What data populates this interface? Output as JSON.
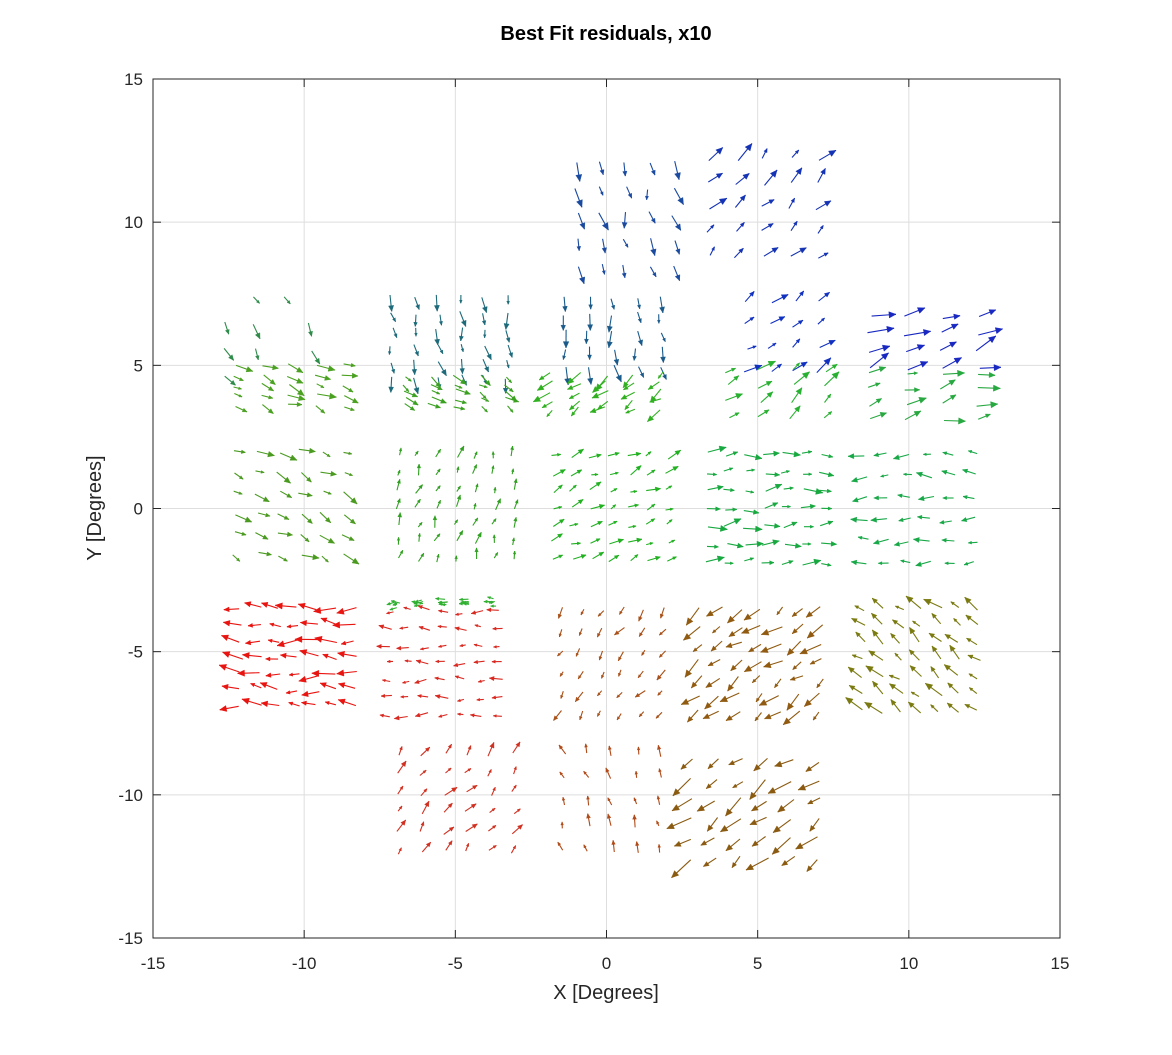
{
  "chart_data": {
    "type": "quiver",
    "title": "Best Fit residuals, x10",
    "xlabel": "X [Degrees]",
    "ylabel": "Y [Degrees]",
    "xlim": [
      -15,
      15
    ],
    "ylim": [
      -15,
      15
    ],
    "xticks": [
      -15,
      -10,
      -5,
      0,
      5,
      10,
      15
    ],
    "yticks": [
      -15,
      -10,
      -5,
      0,
      5,
      10,
      15
    ],
    "grid": true,
    "box": "on",
    "fields": [
      {
        "center": [
          -11.2,
          6.0
        ],
        "half": [
          1.4,
          1.4
        ],
        "density": 4,
        "dir": [
          0.5,
          -0.9
        ],
        "color": "#2e8b4a",
        "mag": 0.45,
        "sparse": true
      },
      {
        "center": [
          -10.5,
          4.3
        ],
        "half": [
          1.8,
          0.7
        ],
        "density": 5,
        "dir": [
          1.0,
          -0.4
        ],
        "color": "#4aa020",
        "mag": 0.5
      },
      {
        "center": [
          -5.2,
          6.0
        ],
        "half": [
          1.9,
          1.4
        ],
        "density": 6,
        "dir": [
          0.2,
          -1.0
        ],
        "color": "#1c6a7a",
        "mag": 0.45
      },
      {
        "center": [
          -5.0,
          4.1
        ],
        "half": [
          1.7,
          0.5
        ],
        "density": 5,
        "dir": [
          0.8,
          -0.5
        ],
        "color": "#3aa020",
        "mag": 0.45
      },
      {
        "center": [
          0.2,
          6.2
        ],
        "half": [
          1.6,
          1.2
        ],
        "density": 5,
        "dir": [
          0.1,
          -1.0
        ],
        "color": "#1a5a8a",
        "mag": 0.5
      },
      {
        "center": [
          0.0,
          4.1
        ],
        "half": [
          1.8,
          0.6
        ],
        "density": 5,
        "dir": [
          -0.8,
          -0.6
        ],
        "color": "#30b020",
        "mag": 0.5
      },
      {
        "center": [
          0.6,
          10.3
        ],
        "half": [
          1.6,
          1.8
        ],
        "density": 5,
        "dir": [
          0.2,
          -1.0
        ],
        "color": "#1a4aa0",
        "mag": 0.55
      },
      {
        "center": [
          5.2,
          10.5
        ],
        "half": [
          1.8,
          1.7
        ],
        "density": 5,
        "dir": [
          0.7,
          0.8
        ],
        "color": "#1432b4",
        "mag": 0.6
      },
      {
        "center": [
          5.8,
          6.0
        ],
        "half": [
          1.2,
          1.2
        ],
        "density": 4,
        "dir": [
          0.8,
          0.6
        ],
        "color": "#1030c0",
        "mag": 0.55
      },
      {
        "center": [
          5.6,
          4.0
        ],
        "half": [
          1.6,
          0.8
        ],
        "density": 4,
        "dir": [
          0.8,
          0.6
        ],
        "color": "#28b030",
        "mag": 0.55
      },
      {
        "center": [
          10.5,
          5.8
        ],
        "half": [
          1.8,
          0.9
        ],
        "density": 4,
        "dir": [
          1.0,
          0.4
        ],
        "color": "#1828c0",
        "mag": 0.7
      },
      {
        "center": [
          10.5,
          3.9
        ],
        "half": [
          1.8,
          0.8
        ],
        "density": 4,
        "dir": [
          1.0,
          0.3
        ],
        "color": "#28a840",
        "mag": 0.6
      },
      {
        "center": [
          -10.5,
          0.2
        ],
        "half": [
          1.8,
          1.8
        ],
        "density": 6,
        "dir": [
          1.0,
          -0.5
        ],
        "color": "#4a9a20",
        "mag": 0.5
      },
      {
        "center": [
          -5.0,
          0.0
        ],
        "half": [
          1.9,
          1.8
        ],
        "density": 7,
        "dir": [
          0.3,
          0.9
        ],
        "color": "#30a020",
        "mag": 0.35
      },
      {
        "center": [
          0.1,
          0.0
        ],
        "half": [
          1.9,
          1.8
        ],
        "density": 7,
        "dir": [
          0.9,
          0.4
        ],
        "color": "#20b020",
        "mag": 0.4
      },
      {
        "center": [
          5.2,
          0.0
        ],
        "half": [
          1.9,
          1.9
        ],
        "density": 7,
        "dir": [
          1.0,
          0.1
        ],
        "color": "#18a840",
        "mag": 0.5
      },
      {
        "center": [
          10.4,
          0.0
        ],
        "half": [
          1.8,
          1.9
        ],
        "density": 6,
        "dir": [
          -1.0,
          0.0
        ],
        "color": "#18a848",
        "mag": 0.45
      },
      {
        "center": [
          -10.2,
          -5.2
        ],
        "half": [
          1.9,
          1.7
        ],
        "density": 7,
        "dir": [
          -1.0,
          0.05
        ],
        "color": "#e81410",
        "mag": 0.6
      },
      {
        "center": [
          -5.3,
          -5.4
        ],
        "half": [
          1.8,
          1.8
        ],
        "density": 7,
        "dir": [
          -1.0,
          0.0
        ],
        "color": "#d82820",
        "mag": 0.35
      },
      {
        "center": [
          -5.3,
          -3.3
        ],
        "half": [
          1.6,
          0.1
        ],
        "density": 5,
        "dir": [
          -1.0,
          0.0
        ],
        "color": "#30b030",
        "mag": 0.25
      },
      {
        "center": [
          0.2,
          -5.3
        ],
        "half": [
          1.7,
          1.8
        ],
        "density": 6,
        "dir": [
          -0.6,
          -0.8
        ],
        "color": "#a85018",
        "mag": 0.35
      },
      {
        "center": [
          5.1,
          -5.3
        ],
        "half": [
          2.0,
          1.8
        ],
        "density": 7,
        "dir": [
          -0.8,
          -0.6
        ],
        "color": "#905a10",
        "mag": 0.6
      },
      {
        "center": [
          10.4,
          -5.3
        ],
        "half": [
          1.9,
          1.8
        ],
        "density": 7,
        "dir": [
          -0.7,
          0.6
        ],
        "color": "#7a7a10",
        "mag": 0.55
      },
      {
        "center": [
          -5.0,
          -10.3
        ],
        "half": [
          1.9,
          1.7
        ],
        "density": 6,
        "dir": [
          0.6,
          0.8
        ],
        "color": "#d03020",
        "mag": 0.4
      },
      {
        "center": [
          0.2,
          -10.3
        ],
        "half": [
          1.6,
          1.7
        ],
        "density": 5,
        "dir": [
          -0.3,
          0.9
        ],
        "color": "#b04a18",
        "mag": 0.35
      },
      {
        "center": [
          4.9,
          -10.5
        ],
        "half": [
          2.1,
          1.7
        ],
        "density": 6,
        "dir": [
          -0.8,
          -0.6
        ],
        "color": "#8a5a10",
        "mag": 0.7
      }
    ]
  }
}
